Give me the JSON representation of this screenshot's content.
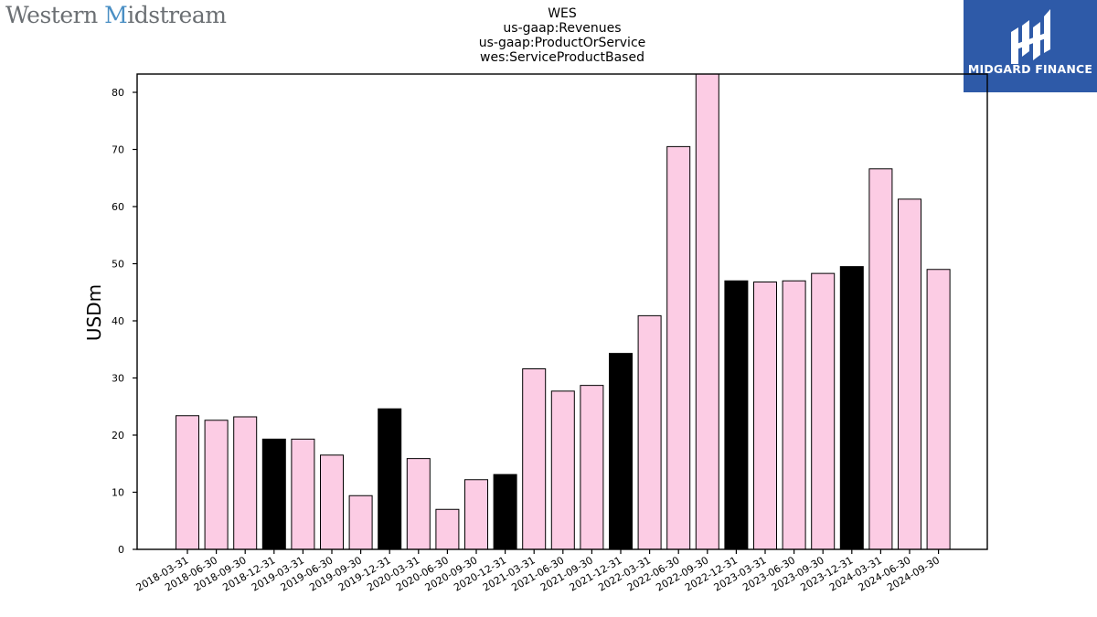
{
  "header": {
    "brand_name_part1": "Western ",
    "brand_name_part2": "M",
    "brand_name_part3": "idstream",
    "logo_text": "MIDGARD FINANCE"
  },
  "colors": {
    "bar_default": "#fccce4",
    "bar_highlight": "#000000",
    "bar_edge": "#000000",
    "logo_bg": "#2e5aa8",
    "brand_accent": "#4a8fc4"
  },
  "chart_data": {
    "type": "bar",
    "title_lines": [
      "WES",
      "us-gaap:Revenues",
      "us-gaap:ProductOrService",
      "wes:ServiceProductBased"
    ],
    "xlabel": "",
    "ylabel": "USDm",
    "ylim": [
      0,
      83
    ],
    "yticks": [
      0,
      10,
      20,
      30,
      40,
      50,
      60,
      70,
      80
    ],
    "grid": false,
    "legend": "none",
    "categories": [
      "2018-03-31",
      "2018-06-30",
      "2018-09-30",
      "2018-12-31",
      "2019-03-31",
      "2019-06-30",
      "2019-09-30",
      "2019-12-31",
      "2020-03-31",
      "2020-06-30",
      "2020-09-30",
      "2020-12-31",
      "2021-03-31",
      "2021-06-30",
      "2021-09-30",
      "2021-12-31",
      "2022-03-31",
      "2022-06-30",
      "2022-09-30",
      "2022-12-31",
      "2023-03-31",
      "2023-06-30",
      "2023-09-30",
      "2023-12-31",
      "2024-03-31",
      "2024-06-30",
      "2024-09-30"
    ],
    "values": [
      23.4,
      22.6,
      23.2,
      19.3,
      19.3,
      16.5,
      9.4,
      24.6,
      15.9,
      7.0,
      12.2,
      13.1,
      31.6,
      27.7,
      28.7,
      34.3,
      40.9,
      70.5,
      83.2,
      47.0,
      46.8,
      47.0,
      48.3,
      49.5,
      66.6,
      61.3,
      49.0
    ],
    "highlight": [
      false,
      false,
      false,
      true,
      false,
      false,
      false,
      true,
      false,
      false,
      false,
      true,
      false,
      false,
      false,
      true,
      false,
      false,
      false,
      true,
      false,
      false,
      false,
      true,
      false,
      false,
      false
    ]
  }
}
